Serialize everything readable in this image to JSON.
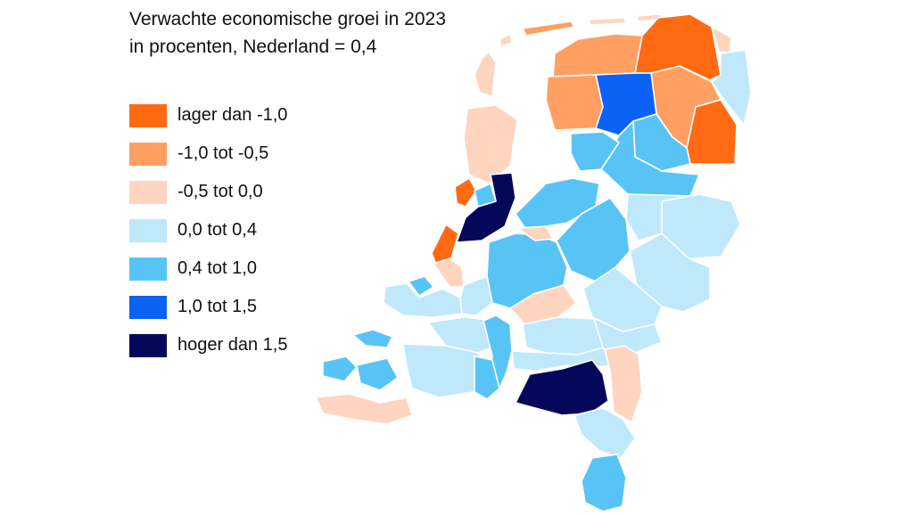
{
  "title": {
    "line1": "Verwachte economische groei in 2023",
    "line2": "in procenten, Nederland = 0,4"
  },
  "colors": {
    "c1": "#ff6a13",
    "c2": "#ff9f62",
    "c3": "#ffd5c0",
    "c4": "#bfe8fb",
    "c5": "#58c4f5",
    "c6": "#0b62f5",
    "c7": "#05085a"
  },
  "legend": [
    {
      "label": "lager dan -1,0",
      "color": "#ff6a13"
    },
    {
      "label": "-1,0 tot -0,5",
      "color": "#ff9f62"
    },
    {
      "label": "-0,5 tot 0,0",
      "color": "#ffd5c0"
    },
    {
      "label": "0,0 tot 0,4",
      "color": "#bfe8fb"
    },
    {
      "label": "0,4 tot 1,0",
      "color": "#58c4f5"
    },
    {
      "label": "1,0 tot 1,5",
      "color": "#0b62f5"
    },
    {
      "label": "hoger dan 1,5",
      "color": "#05085a"
    }
  ]
}
